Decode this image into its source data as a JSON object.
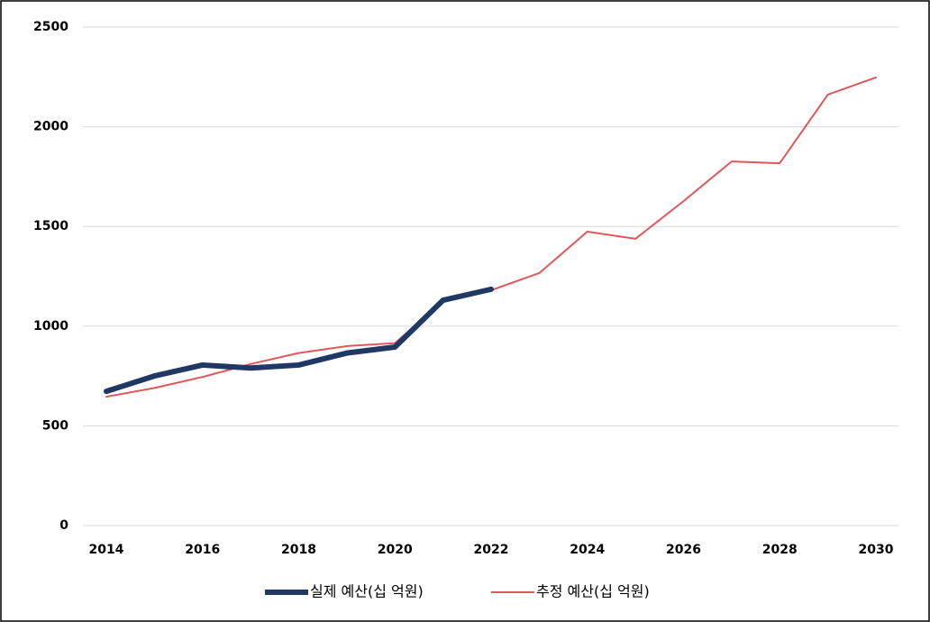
{
  "chart_data": {
    "type": "line",
    "series": [
      {
        "name": "실제 예산(십 억원)",
        "color": "#1f3864",
        "width": 6,
        "x": [
          2014,
          2015,
          2016,
          2017,
          2018,
          2019,
          2020,
          2021,
          2022
        ],
        "values": [
          673,
          750,
          805,
          790,
          805,
          865,
          895,
          1130,
          1185
        ]
      },
      {
        "name": "추정 예산(십 억원)",
        "color": "#e0575a",
        "width": 2,
        "x": [
          2014,
          2015,
          2016,
          2017,
          2018,
          2019,
          2020,
          2021,
          2022,
          2023,
          2024,
          2025,
          2026,
          2027,
          2028,
          2029,
          2030
        ],
        "values": [
          646,
          690,
          745,
          810,
          865,
          900,
          915,
          1125,
          1180,
          1266,
          1474,
          1438,
          1627,
          1826,
          1817,
          2161,
          2247
        ]
      }
    ],
    "xlim": [
      2014,
      2030
    ],
    "xticks": [
      2014,
      2016,
      2018,
      2020,
      2022,
      2024,
      2026,
      2028,
      2030
    ],
    "ylim": [
      0,
      2500
    ],
    "yticks": [
      0,
      500,
      1000,
      1500,
      2000,
      2500
    ],
    "grid": true,
    "legend": "bottom"
  }
}
